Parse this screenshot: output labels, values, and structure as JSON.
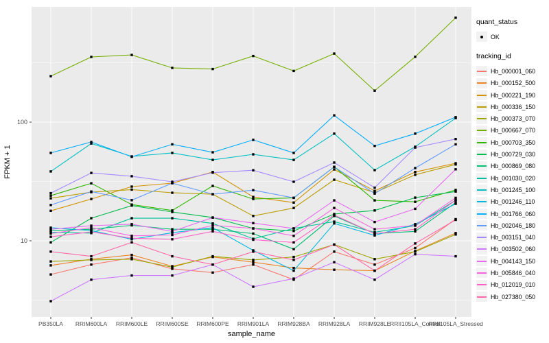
{
  "legend": {
    "quant_status_title": "quant_status",
    "quant_status_items": [
      {
        "label": "OK",
        "marker": "black-point"
      }
    ],
    "tracking_title": "tracking_id"
  },
  "chart_data": {
    "type": "line",
    "title": "",
    "xlabel": "sample_name",
    "ylabel": "FPKM + 1",
    "y_scale": "log10",
    "y_ticks": [
      10,
      100
    ],
    "y_minor_gridlines": [
      3.1623,
      31.623,
      316.23
    ],
    "ylim": [
      2.3,
      936
    ],
    "grid": true,
    "legend_position": "right",
    "panel_background": "#EBEBEB",
    "grid_color": "#FFFFFF",
    "point_color": "#000000",
    "categories": [
      "PB350LA",
      "RRIM600LA",
      "RRIM600LE",
      "RRIM600SE",
      "RRIM600PE",
      "RRIM901LA",
      "RRIM928BA",
      "RRIM928LA",
      "RRIM928LE",
      "RRII105LA_Control",
      "RRII105LA_Stressed"
    ],
    "series": [
      {
        "name": "Hb_000001_060",
        "color": "#F8766D",
        "values": [
          5.2,
          6.3,
          7.2,
          5.8,
          5.4,
          6.3,
          4.7,
          8.1,
          6.3,
          8.7,
          15.2
        ]
      },
      {
        "name": "Hb_000152_500",
        "color": "#E88526",
        "values": [
          6.2,
          7.0,
          7.6,
          6.1,
          7.3,
          6.6,
          5.9,
          5.7,
          5.6,
          8.2,
          11.6
        ]
      },
      {
        "name": "Hb_000221_190",
        "color": "#D39200",
        "values": [
          17.9,
          22.5,
          28.6,
          30.6,
          38.0,
          23.4,
          21.0,
          39.9,
          26.3,
          38.0,
          45.0
        ]
      },
      {
        "name": "Hb_000336_150",
        "color": "#BB9D00",
        "values": [
          22.8,
          25.7,
          27.0,
          25.4,
          24.7,
          16.2,
          18.9,
          32.7,
          25.5,
          36.0,
          44.0
        ]
      },
      {
        "name": "Hb_000373_070",
        "color": "#9CA700",
        "values": [
          6.7,
          6.9,
          7.0,
          6.0,
          7.4,
          6.9,
          7.3,
          9.3,
          7.0,
          8.1,
          11.3
        ]
      },
      {
        "name": "Hb_000667_070",
        "color": "#75B000",
        "values": [
          244,
          354,
          368,
          286,
          280,
          361,
          270,
          378,
          184,
          355,
          757
        ]
      },
      {
        "name": "Hb_000703_350",
        "color": "#2FB600",
        "values": [
          24.0,
          30.5,
          20.2,
          18.0,
          29.0,
          22.5,
          23.0,
          42.0,
          21.9,
          21.3,
          26.8
        ]
      },
      {
        "name": "Hb_000729_030",
        "color": "#00BB4B",
        "values": [
          9.7,
          15.5,
          19.8,
          17.5,
          15.7,
          12.7,
          12.1,
          16.8,
          18.0,
          23.1,
          26.0
        ]
      },
      {
        "name": "Hb_000869_080",
        "color": "#00BF74",
        "values": [
          12.2,
          12.5,
          13.5,
          12.5,
          12.5,
          11.5,
          8.5,
          16.2,
          11.5,
          12.0,
          21.0
        ]
      },
      {
        "name": "Hb_001030_020",
        "color": "#00C19C",
        "values": [
          11.8,
          11.6,
          15.5,
          15.5,
          14.0,
          10.4,
          12.7,
          14.5,
          11.8,
          13.4,
          22.0
        ]
      },
      {
        "name": "Hb_001245_100",
        "color": "#00BFC0",
        "values": [
          38.4,
          66.0,
          51.4,
          55.0,
          48.0,
          53.5,
          48.0,
          80.0,
          39.4,
          62.0,
          108
        ]
      },
      {
        "name": "Hb_001246_110",
        "color": "#00B8E0",
        "values": [
          12.9,
          12.2,
          10.3,
          11.7,
          12.9,
          8.3,
          5.6,
          14.0,
          11.1,
          13.8,
          20.5
        ]
      },
      {
        "name": "Hb_001766_060",
        "color": "#00ACFC",
        "values": [
          55.0,
          68.0,
          51.0,
          65.0,
          55.7,
          70.8,
          55.0,
          114,
          63.0,
          80.0,
          110
        ]
      },
      {
        "name": "Hb_002046_180",
        "color": "#619CFF",
        "values": [
          20.0,
          26.0,
          22.0,
          30.6,
          24.7,
          26.7,
          23.0,
          42.0,
          25.0,
          41.0,
          65.0
        ]
      },
      {
        "name": "Hb_003151_040",
        "color": "#A58AFF",
        "values": [
          25.2,
          37.3,
          35.0,
          31.4,
          37.5,
          39.3,
          31.4,
          45.6,
          28.0,
          61.0,
          72.0
        ]
      },
      {
        "name": "Hb_003502_060",
        "color": "#CD79FF",
        "values": [
          3.1,
          4.7,
          5.1,
          5.1,
          6.3,
          4.1,
          4.8,
          6.6,
          4.7,
          7.7,
          7.4
        ]
      },
      {
        "name": "Hb_004143_150",
        "color": "#E769F0",
        "values": [
          12.5,
          13.4,
          13.8,
          12.0,
          15.7,
          14.1,
          12.7,
          21.9,
          14.4,
          18.6,
          40.0
        ]
      },
      {
        "name": "Hb_005846_040",
        "color": "#F763DF",
        "values": [
          11.5,
          12.9,
          11.0,
          11.2,
          13.5,
          12.7,
          11.0,
          18.9,
          12.5,
          13.5,
          23.0
        ]
      },
      {
        "name": "Hb_012019_010",
        "color": "#FF61C7",
        "values": [
          10.8,
          11.9,
          10.5,
          10.3,
          12.0,
          10.2,
          9.7,
          16.5,
          11.5,
          12.5,
          22.0
        ]
      },
      {
        "name": "Hb_027380_050",
        "color": "#FF68A8",
        "values": [
          8.1,
          7.4,
          9.7,
          7.4,
          6.3,
          8.1,
          6.9,
          9.3,
          5.6,
          9.5,
          15.0
        ]
      }
    ]
  }
}
